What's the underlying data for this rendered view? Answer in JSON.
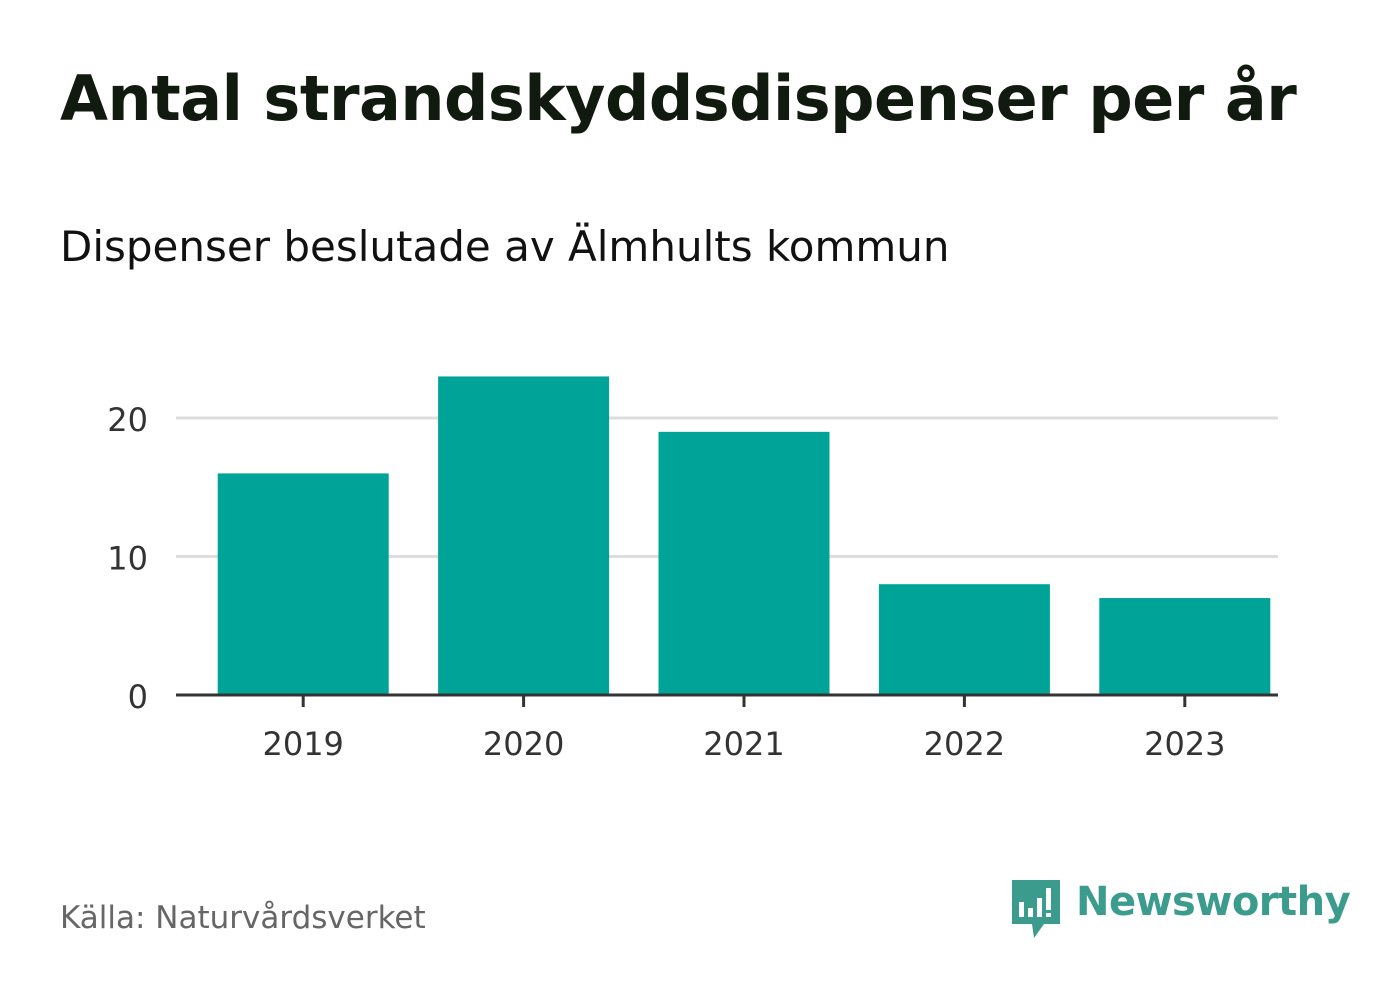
{
  "title": "Antal strandskyddsdispenser per år",
  "subtitle": "Dispenser beslutade av Älmhults kommun",
  "source": "Källa: Naturvårdsverket",
  "brand": {
    "name": "Newsworthy",
    "icon": "newsworthy-logo-icon",
    "color": "#3b9c8e"
  },
  "colors": {
    "bar": "#00a398",
    "grid": "#dddddd",
    "axis": "#333333",
    "tick_label": "#333333"
  },
  "chart_data": {
    "type": "bar",
    "title": "Antal strandskyddsdispenser per år",
    "subtitle": "Dispenser beslutade av Älmhults kommun",
    "categories": [
      "2019",
      "2020",
      "2021",
      "2022",
      "2023"
    ],
    "values": [
      16,
      23,
      19,
      8,
      7
    ],
    "xlabel": "",
    "ylabel": "",
    "ylim": [
      0,
      23
    ],
    "yticks": [
      0,
      10,
      20
    ],
    "grid": true,
    "legend": "none"
  }
}
